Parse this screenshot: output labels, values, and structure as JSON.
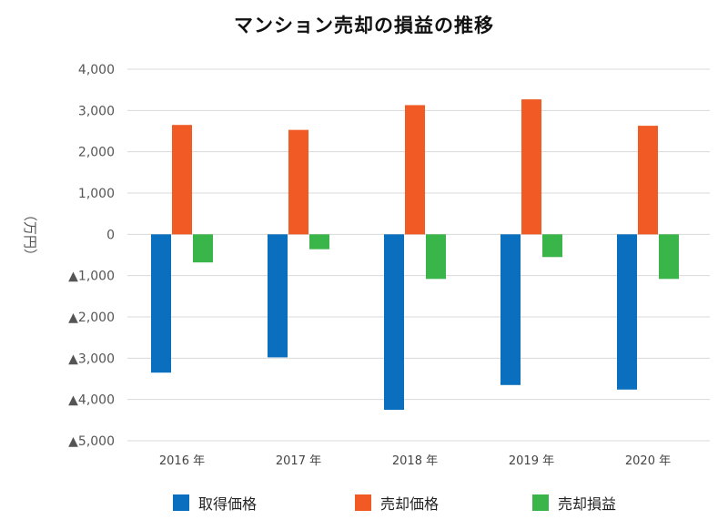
{
  "chart_data": {
    "type": "bar",
    "title": "マンション売却の損益の推移",
    "ylabel": "（万円）",
    "categories": [
      "2016 年",
      "2017 年",
      "2018 年",
      "2019 年",
      "2020 年"
    ],
    "ylim": [
      -5000,
      4000
    ],
    "yticks": [
      {
        "value": 4000,
        "label": "4,000"
      },
      {
        "value": 3000,
        "label": "3,000"
      },
      {
        "value": 2000,
        "label": "2,000"
      },
      {
        "value": 1000,
        "label": "1,000"
      },
      {
        "value": 0,
        "label": "0"
      },
      {
        "value": -1000,
        "label": "▲1,000"
      },
      {
        "value": -2000,
        "label": "▲2,000"
      },
      {
        "value": -3000,
        "label": "▲3,000"
      },
      {
        "value": -4000,
        "label": "▲4,000"
      },
      {
        "value": -5000,
        "label": "▲5,000"
      }
    ],
    "grid": true,
    "legend_position": "bottom",
    "series": [
      {
        "name": "取得価格",
        "color": "#0a6fbe",
        "values": [
          -3350,
          -2980,
          -4250,
          -3650,
          -3760
        ]
      },
      {
        "name": "売却価格",
        "color": "#f15a24",
        "values": [
          2650,
          2530,
          3130,
          3270,
          2630
        ]
      },
      {
        "name": "売却損益",
        "color": "#39b54a",
        "values": [
          -680,
          -360,
          -1080,
          -550,
          -1080
        ]
      }
    ]
  }
}
